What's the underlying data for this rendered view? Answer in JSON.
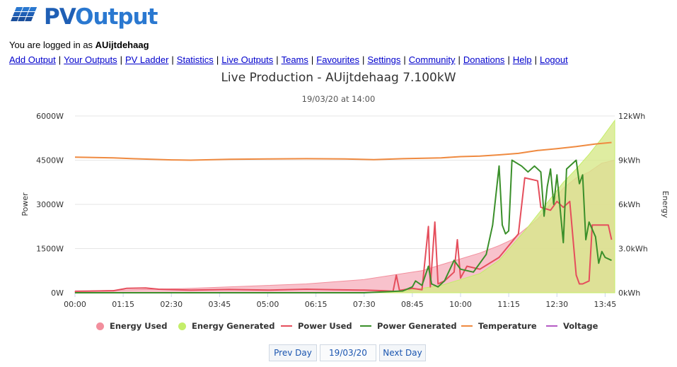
{
  "site": {
    "logo_text_pv": "PV",
    "logo_text_output": "Output"
  },
  "session": {
    "prefix": "You are logged in as ",
    "username": "AUijtdehaag"
  },
  "nav": [
    {
      "label": "Add Output"
    },
    {
      "label": "Your Outputs"
    },
    {
      "label": "PV Ladder"
    },
    {
      "label": "Statistics"
    },
    {
      "label": "Live Outputs"
    },
    {
      "label": "Teams"
    },
    {
      "label": "Favourites"
    },
    {
      "label": "Settings"
    },
    {
      "label": "Community"
    },
    {
      "label": "Donations"
    },
    {
      "label": "Help"
    },
    {
      "label": "Logout"
    }
  ],
  "pager": {
    "prev": "Prev Day",
    "date": "19/03/20",
    "next": "Next Day"
  },
  "colors": {
    "energy_used": "#f28f9d",
    "energy_used_fill": "#f7b7c3",
    "energy_generated": "#c4ee6a",
    "energy_generated_fill": "#d7e98a",
    "power_used": "#e54e5c",
    "power_generated": "#3a8f2a",
    "temperature": "#ef8a40",
    "voltage": "#b55bc4"
  },
  "chart_data": {
    "type": "line",
    "title": "Live Production - AUijtdehaag 7.100kW",
    "subtitle": "19/03/20 at 14:00",
    "xlabel": "",
    "ylabel_left": "Power",
    "ylabel_right": "Energy",
    "x_ticks": [
      "00:00",
      "01:15",
      "02:30",
      "03:45",
      "05:00",
      "06:15",
      "07:30",
      "08:45",
      "10:00",
      "11:15",
      "12:30",
      "13:45"
    ],
    "y_left_ticks": [
      "0W",
      "1500W",
      "3000W",
      "4500W",
      "6000W"
    ],
    "y_right_ticks": [
      "0kWh",
      "3.0kWh",
      "6kWh",
      "9kWh",
      "12kWh"
    ],
    "xlim": [
      "00:00",
      "14:00"
    ],
    "ylim_left": [
      0,
      6000
    ],
    "ylim_right": [
      0,
      12
    ],
    "grid": true,
    "legend_position": "bottom",
    "series": [
      {
        "name": "Energy Used",
        "axis": "right",
        "kind": "area",
        "points": [
          [
            "00:00",
            0.1
          ],
          [
            "03:00",
            0.3
          ],
          [
            "06:00",
            0.6
          ],
          [
            "07:30",
            0.9
          ],
          [
            "08:30",
            1.3
          ],
          [
            "09:00",
            1.5
          ],
          [
            "09:30",
            1.9
          ],
          [
            "10:00",
            2.3
          ],
          [
            "10:30",
            2.7
          ],
          [
            "11:00",
            3.2
          ],
          [
            "11:20",
            3.6
          ],
          [
            "11:40",
            4.3
          ],
          [
            "12:00",
            5.0
          ],
          [
            "12:20",
            6.0
          ],
          [
            "12:40",
            7.1
          ],
          [
            "13:00",
            7.8
          ],
          [
            "13:20",
            8.2
          ],
          [
            "13:40",
            8.8
          ],
          [
            "14:00",
            9.0
          ]
        ]
      },
      {
        "name": "Energy Generated",
        "axis": "right",
        "kind": "area",
        "points": [
          [
            "00:00",
            0
          ],
          [
            "07:00",
            0
          ],
          [
            "07:45",
            0
          ],
          [
            "08:30",
            0.1
          ],
          [
            "09:00",
            0.3
          ],
          [
            "09:30",
            0.5
          ],
          [
            "10:00",
            0.9
          ],
          [
            "10:30",
            1.3
          ],
          [
            "11:00",
            2.2
          ],
          [
            "11:20",
            3.2
          ],
          [
            "11:40",
            4.2
          ],
          [
            "12:00",
            5.3
          ],
          [
            "12:20",
            6.4
          ],
          [
            "12:40",
            7.5
          ],
          [
            "13:00",
            8.4
          ],
          [
            "13:20",
            9.4
          ],
          [
            "13:40",
            10.5
          ],
          [
            "14:00",
            11.7
          ]
        ]
      },
      {
        "name": "Power Used",
        "axis": "left",
        "kind": "line",
        "points": [
          [
            "00:00",
            50
          ],
          [
            "00:30",
            60
          ],
          [
            "01:00",
            70
          ],
          [
            "01:20",
            150
          ],
          [
            "01:50",
            160
          ],
          [
            "02:10",
            120
          ],
          [
            "03:00",
            90
          ],
          [
            "04:00",
            110
          ],
          [
            "05:00",
            90
          ],
          [
            "06:00",
            120
          ],
          [
            "06:45",
            100
          ],
          [
            "07:30",
            90
          ],
          [
            "08:00",
            70
          ],
          [
            "08:15",
            50
          ],
          [
            "08:20",
            600
          ],
          [
            "08:25",
            80
          ],
          [
            "08:45",
            150
          ],
          [
            "09:00",
            100
          ],
          [
            "09:10",
            2250
          ],
          [
            "09:13",
            200
          ],
          [
            "09:20",
            2400
          ],
          [
            "09:25",
            300
          ],
          [
            "09:35",
            400
          ],
          [
            "09:50",
            700
          ],
          [
            "09:55",
            1800
          ],
          [
            "10:00",
            500
          ],
          [
            "10:10",
            900
          ],
          [
            "10:30",
            800
          ],
          [
            "11:00",
            1200
          ],
          [
            "11:30",
            2000
          ],
          [
            "11:40",
            3900
          ],
          [
            "12:00",
            3800
          ],
          [
            "12:05",
            2900
          ],
          [
            "12:20",
            2800
          ],
          [
            "12:30",
            3100
          ],
          [
            "12:40",
            2900
          ],
          [
            "12:50",
            3100
          ],
          [
            "13:00",
            600
          ],
          [
            "13:05",
            300
          ],
          [
            "13:10",
            300
          ],
          [
            "13:20",
            400
          ],
          [
            "13:25",
            2300
          ],
          [
            "13:35",
            2300
          ],
          [
            "13:50",
            2300
          ],
          [
            "13:55",
            1800
          ]
        ]
      },
      {
        "name": "Power Generated",
        "axis": "left",
        "kind": "line",
        "points": [
          [
            "00:00",
            0
          ],
          [
            "07:30",
            0
          ],
          [
            "08:00",
            30
          ],
          [
            "08:30",
            60
          ],
          [
            "08:45",
            200
          ],
          [
            "08:50",
            400
          ],
          [
            "09:00",
            250
          ],
          [
            "09:10",
            900
          ],
          [
            "09:15",
            300
          ],
          [
            "09:25",
            200
          ],
          [
            "09:35",
            400
          ],
          [
            "09:50",
            1100
          ],
          [
            "10:00",
            800
          ],
          [
            "10:20",
            700
          ],
          [
            "10:40",
            1300
          ],
          [
            "10:50",
            2300
          ],
          [
            "11:00",
            4300
          ],
          [
            "11:05",
            2300
          ],
          [
            "11:10",
            2000
          ],
          [
            "11:15",
            2100
          ],
          [
            "11:20",
            4500
          ],
          [
            "11:35",
            4300
          ],
          [
            "11:45",
            4100
          ],
          [
            "11:55",
            4300
          ],
          [
            "12:05",
            4100
          ],
          [
            "12:10",
            2600
          ],
          [
            "12:15",
            3600
          ],
          [
            "12:20",
            4200
          ],
          [
            "12:25",
            3000
          ],
          [
            "12:30",
            4000
          ],
          [
            "12:40",
            1700
          ],
          [
            "12:45",
            4200
          ],
          [
            "13:00",
            4500
          ],
          [
            "13:05",
            3700
          ],
          [
            "13:10",
            4000
          ],
          [
            "13:15",
            1800
          ],
          [
            "13:20",
            2400
          ],
          [
            "13:30",
            1900
          ],
          [
            "13:35",
            1000
          ],
          [
            "13:40",
            1400
          ],
          [
            "13:45",
            1200
          ],
          [
            "13:55",
            1100
          ]
        ]
      },
      {
        "name": "Temperature",
        "axis": "left",
        "kind": "line",
        "points": [
          [
            "00:00",
            4600
          ],
          [
            "01:00",
            4580
          ],
          [
            "01:30",
            4550
          ],
          [
            "02:30",
            4510
          ],
          [
            "03:00",
            4500
          ],
          [
            "04:00",
            4530
          ],
          [
            "05:00",
            4540
          ],
          [
            "06:00",
            4550
          ],
          [
            "07:00",
            4540
          ],
          [
            "07:45",
            4520
          ],
          [
            "08:30",
            4550
          ],
          [
            "09:30",
            4580
          ],
          [
            "10:00",
            4620
          ],
          [
            "10:30",
            4640
          ],
          [
            "11:00",
            4680
          ],
          [
            "11:30",
            4730
          ],
          [
            "12:00",
            4830
          ],
          [
            "12:30",
            4890
          ],
          [
            "13:00",
            4960
          ],
          [
            "13:30",
            5050
          ],
          [
            "13:55",
            5100
          ]
        ]
      },
      {
        "name": "Voltage",
        "axis": "left",
        "kind": "line",
        "points": []
      }
    ]
  }
}
